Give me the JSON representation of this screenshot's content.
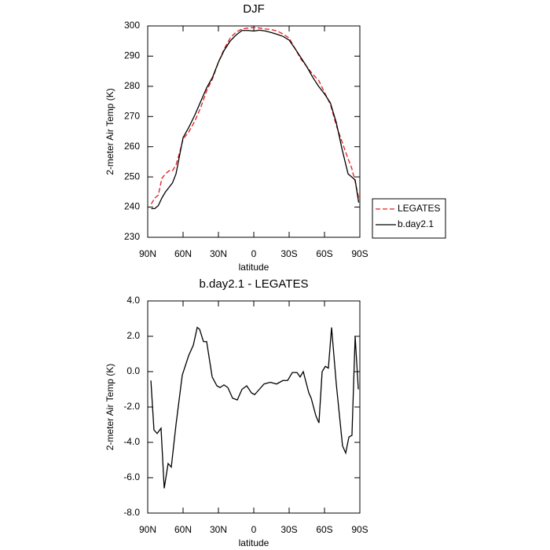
{
  "chart_data": [
    {
      "type": "line",
      "title": "DJF",
      "xlabel": "latitude",
      "ylabel": "2-meter Air Temp (K)",
      "x": [
        87,
        84,
        81,
        78,
        75,
        72,
        69,
        66,
        63,
        60,
        55,
        50,
        45,
        40,
        35,
        30,
        25,
        20,
        15,
        10,
        5,
        0,
        -5,
        -10,
        -15,
        -20,
        -25,
        -30,
        -35,
        -40,
        -45,
        -50,
        -55,
        -60,
        -65,
        -70,
        -75,
        -80,
        -83,
        -86,
        -89
      ],
      "series": [
        {
          "name": "LEGATES",
          "color": "#e31a1c",
          "line_style": "dashed",
          "values": [
            241,
            243,
            244,
            249.5,
            251,
            252,
            252,
            254,
            258,
            262.5,
            265,
            268.5,
            273,
            278.5,
            282.5,
            288,
            292.5,
            296,
            298,
            299,
            299.3,
            299.5,
            299.3,
            299,
            298.8,
            298.3,
            297.3,
            296,
            292.5,
            289,
            286.5,
            284,
            282,
            278,
            274,
            267,
            261.5,
            256,
            253,
            248.5,
            243
          ]
        },
        {
          "name": "b.day2.1",
          "color": "#000000",
          "line_style": "solid",
          "values": [
            239.5,
            239.5,
            240.5,
            243,
            245,
            246.5,
            248,
            251,
            257,
            263,
            266.5,
            270.5,
            275,
            279.5,
            283,
            288,
            292,
            295,
            297,
            298.5,
            298.5,
            298.3,
            298.6,
            298.3,
            297.8,
            297.2,
            296.5,
            295.3,
            292.5,
            289.5,
            286.5,
            283,
            280,
            277.5,
            274.5,
            268,
            259,
            251,
            250,
            249,
            241.5
          ]
        }
      ],
      "xlim": [
        90,
        -90
      ],
      "xticks": [
        {
          "value": 90,
          "label": "90N"
        },
        {
          "value": 60,
          "label": "60N"
        },
        {
          "value": 30,
          "label": "30N"
        },
        0,
        {
          "value": -30,
          "label": "30S"
        },
        {
          "value": -60,
          "label": "60S"
        },
        {
          "value": -90,
          "label": "90S"
        }
      ],
      "ylim": [
        230,
        300
      ],
      "yticks": [
        230,
        240,
        250,
        260,
        270,
        280,
        290,
        300
      ],
      "legend_position": "right"
    },
    {
      "type": "line",
      "title": "b.day2.1 - LEGATES",
      "xlabel": "latitude",
      "ylabel": "2-meter Air Temp (K)",
      "x": [
        87.3,
        84.7,
        82,
        78.7,
        76,
        72.7,
        70,
        66,
        60.7,
        55.3,
        51.3,
        48,
        46,
        42.7,
        40,
        35.3,
        31.3,
        28.7,
        25.3,
        22,
        18,
        14,
        10,
        6,
        2,
        -0.7,
        -4.7,
        -8.7,
        -14,
        -19.3,
        -24.7,
        -28.7,
        -32.7,
        -36.7,
        -39.3,
        -42,
        -46.7,
        -48.7,
        -52.7,
        -55.3,
        -58,
        -60.7,
        -63.3,
        -66,
        -70,
        -75.3,
        -78,
        -80.7,
        -83.3,
        -86,
        -88.7
      ],
      "series": [
        {
          "name": "b.day2.1",
          "color": "#000000",
          "line_style": "solid",
          "values": [
            -0.5,
            -3.3,
            -3.5,
            -3.2,
            -6.6,
            -5.2,
            -5.4,
            -3.0,
            -0.2,
            0.9,
            1.5,
            2.5,
            2.4,
            1.7,
            1.7,
            -0.3,
            -0.8,
            -0.9,
            -0.75,
            -0.9,
            -1.5,
            -1.6,
            -1.0,
            -0.8,
            -1.2,
            -1.3,
            -1.0,
            -0.7,
            -0.6,
            -0.7,
            -0.5,
            -0.5,
            -0.05,
            -0.05,
            -0.3,
            0.0,
            -1.2,
            -1.5,
            -2.5,
            -2.9,
            0.0,
            0.3,
            0.2,
            2.5,
            -0.7,
            -4.2,
            -4.6,
            -3.7,
            -3.6,
            2.0,
            -1.0
          ]
        }
      ],
      "xlim": [
        90,
        -90
      ],
      "xticks": [
        {
          "value": 90,
          "label": "90N"
        },
        {
          "value": 60,
          "label": "60N"
        },
        {
          "value": 30,
          "label": "30N"
        },
        0,
        {
          "value": -30,
          "label": "30S"
        },
        {
          "value": -60,
          "label": "60S"
        },
        {
          "value": -90,
          "label": "90S"
        }
      ],
      "ylim": [
        -8,
        4
      ],
      "yticks": [
        {
          "value": -8,
          "label": "-8.0"
        },
        {
          "value": -6,
          "label": "-6.0"
        },
        {
          "value": -4,
          "label": "-4.0"
        },
        {
          "value": -2,
          "label": "-2.0"
        },
        {
          "value": 0,
          "label": "0.0"
        },
        {
          "value": 2,
          "label": "2.0"
        },
        {
          "value": 4,
          "label": "4.0"
        }
      ]
    }
  ]
}
